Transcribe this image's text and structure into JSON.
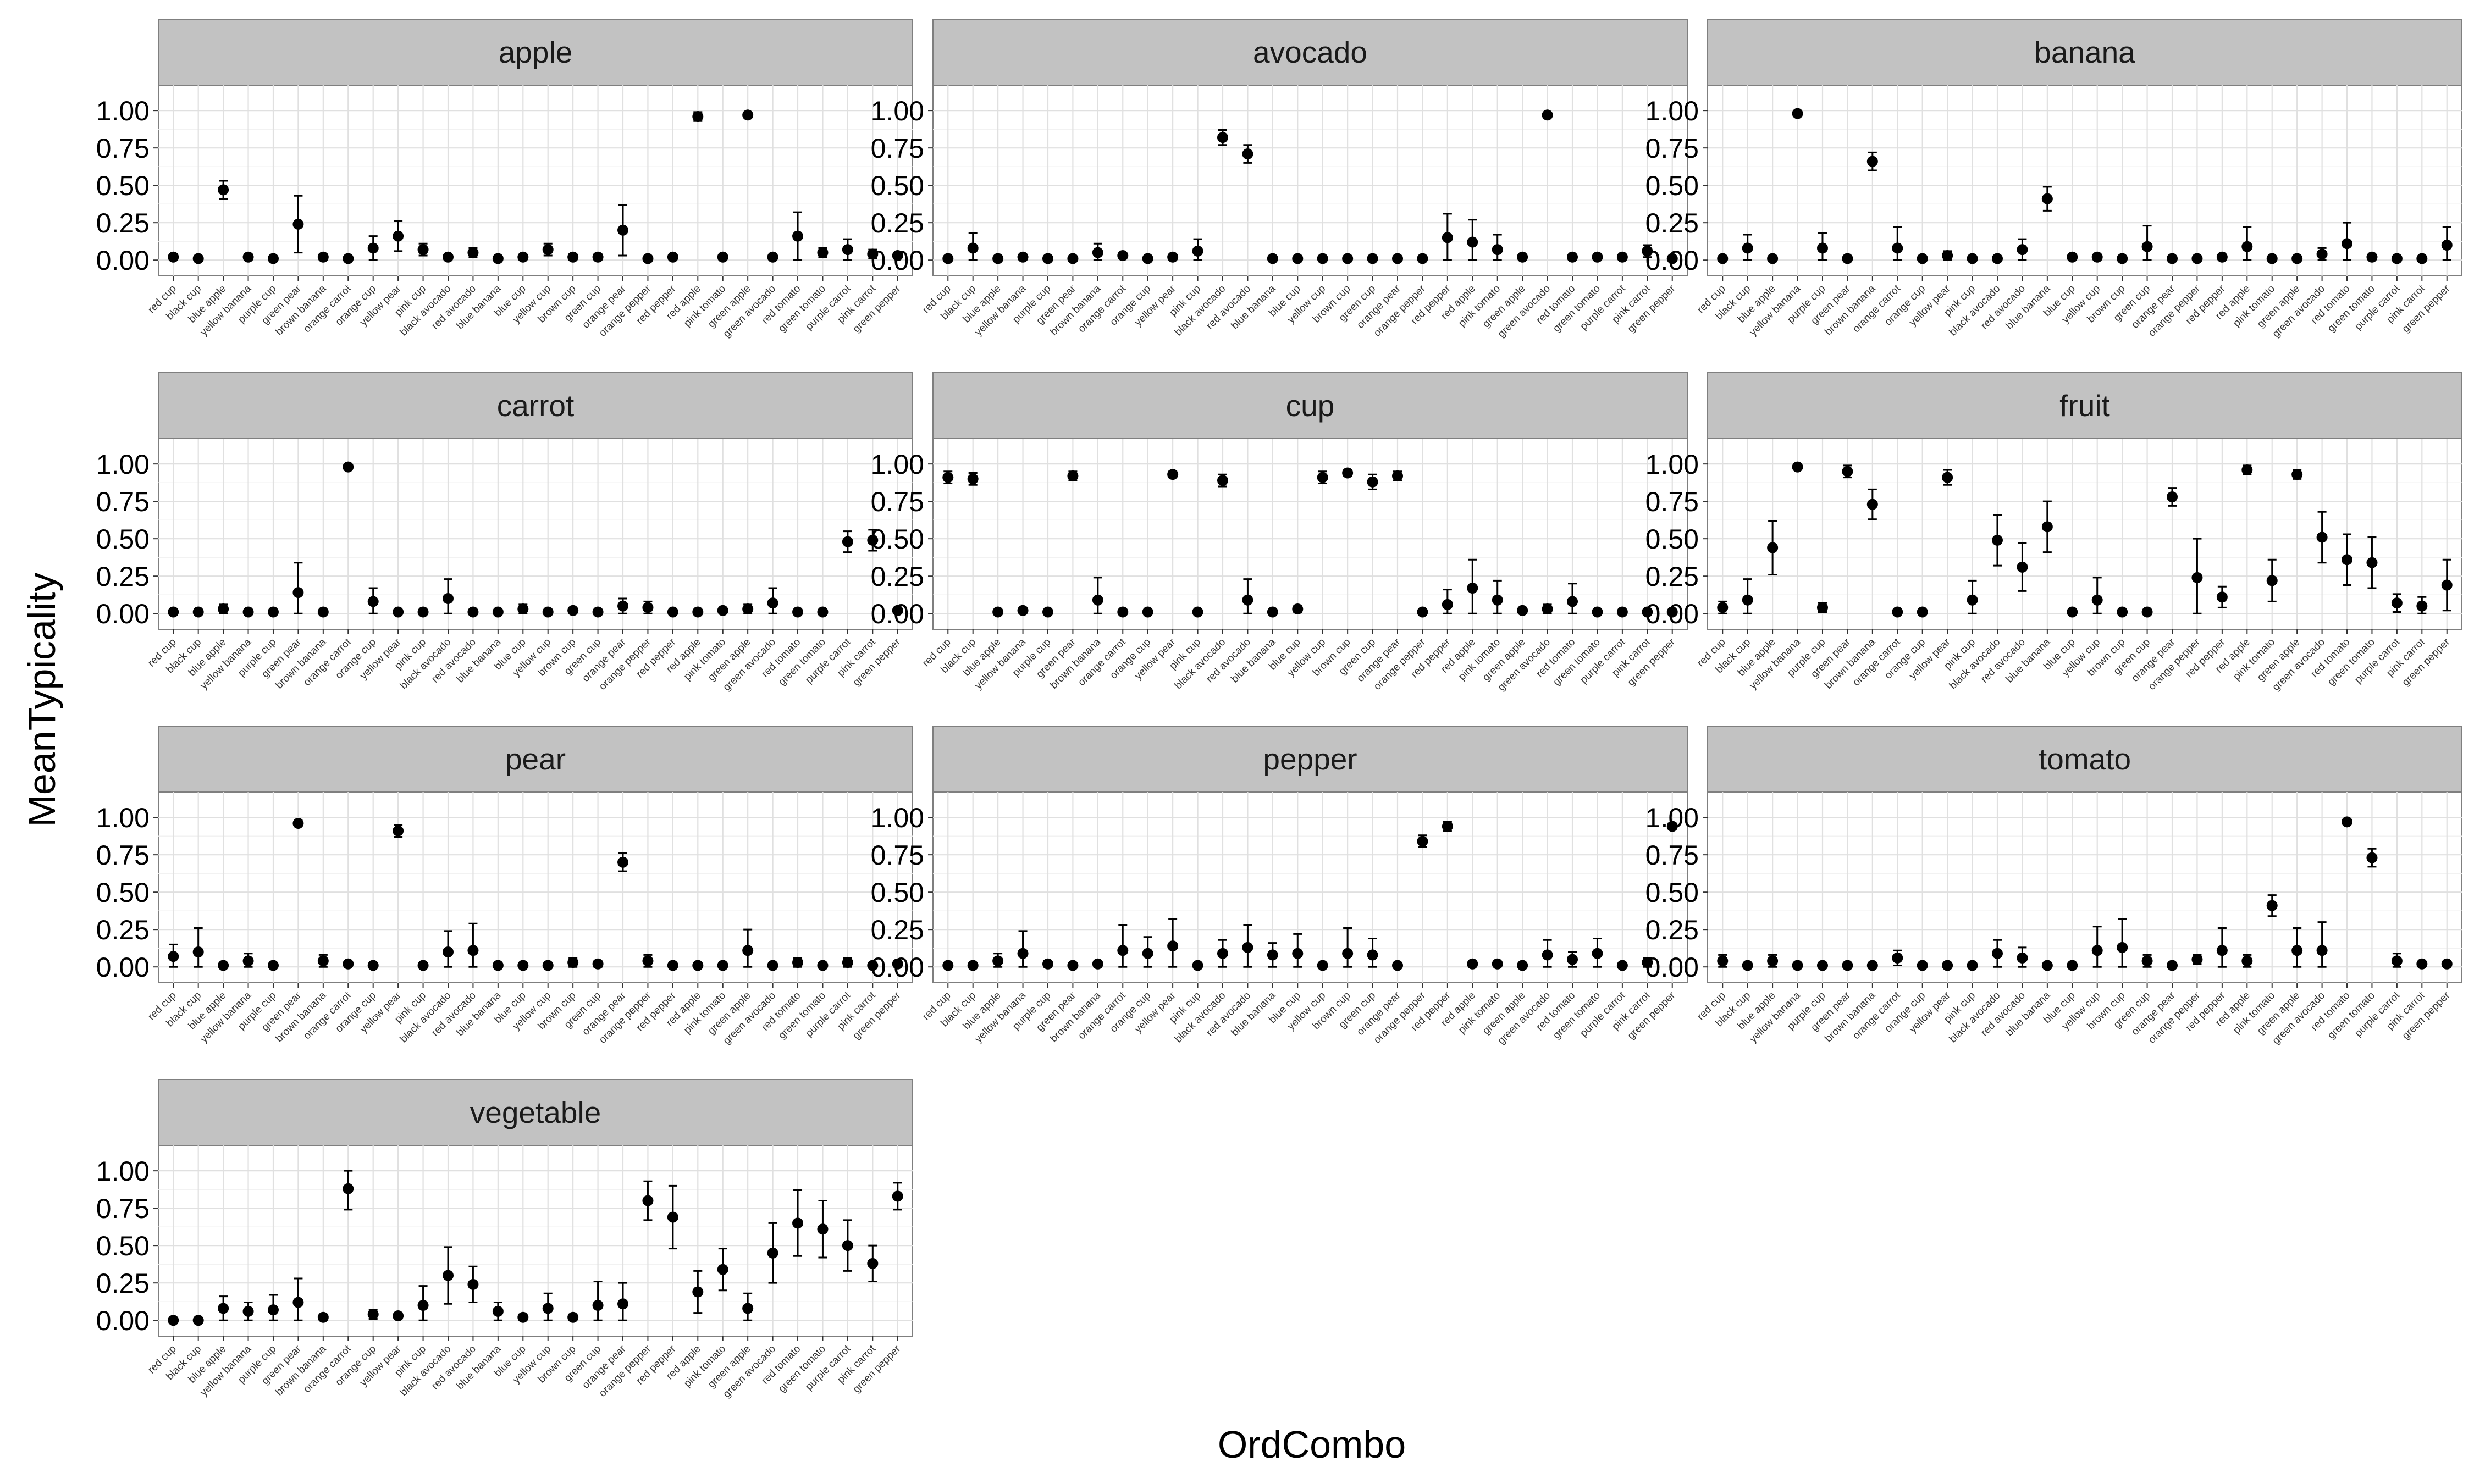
{
  "chart_data": {
    "type": "scatter",
    "xlabel": "OrdCombo",
    "ylabel": "MeanTypicality",
    "ylim": [
      0,
      1
    ],
    "yticks": [
      "0.00",
      "0.25",
      "0.50",
      "0.75",
      "1.00"
    ],
    "grid": true,
    "categories": [
      "red cup",
      "black cup",
      "blue apple",
      "yellow banana",
      "purple cup",
      "green pear",
      "brown banana",
      "orange carrot",
      "orange cup",
      "yellow pear",
      "pink cup",
      "black avocado",
      "red avocado",
      "blue banana",
      "blue cup",
      "yellow cup",
      "brown cup",
      "green cup",
      "orange pear",
      "orange pepper",
      "red pepper",
      "red apple",
      "pink tomato",
      "green apple",
      "green avocado",
      "red tomato",
      "green tomato",
      "purple carrot",
      "pink carrot",
      "green pepper"
    ],
    "panels": [
      {
        "name": "apple",
        "values": [
          0.02,
          0.01,
          0.47,
          0.02,
          0.01,
          0.24,
          0.02,
          0.01,
          0.08,
          0.16,
          0.07,
          0.02,
          0.05,
          0.01,
          0.02,
          0.07,
          0.02,
          0.02,
          0.2,
          0.01,
          0.02,
          0.96,
          0.02,
          0.97,
          0.02,
          0.16,
          0.05,
          0.07,
          0.04,
          0.03
        ],
        "err": [
          0.02,
          0.01,
          0.06,
          0.02,
          0.01,
          0.19,
          0.02,
          0.01,
          0.08,
          0.1,
          0.04,
          0.02,
          0.03,
          0.01,
          0.01,
          0.04,
          0.02,
          0.02,
          0.17,
          0.01,
          0.01,
          0.03,
          0.01,
          0.01,
          0.01,
          0.16,
          0.03,
          0.07,
          0.03,
          0.01
        ]
      },
      {
        "name": "avocado",
        "values": [
          0.01,
          0.08,
          0.01,
          0.02,
          0.01,
          0.01,
          0.05,
          0.03,
          0.01,
          0.02,
          0.06,
          0.82,
          0.71,
          0.01,
          0.01,
          0.01,
          0.01,
          0.01,
          0.01,
          0.01,
          0.15,
          0.12,
          0.07,
          0.02,
          0.97,
          0.02,
          0.02,
          0.02,
          0.06,
          0.01
        ],
        "err": [
          0.01,
          0.1,
          0.01,
          0.01,
          0.01,
          0.01,
          0.06,
          0.02,
          0.01,
          0.01,
          0.08,
          0.05,
          0.06,
          0.01,
          0.01,
          0.01,
          0.01,
          0.01,
          0.01,
          0.01,
          0.16,
          0.15,
          0.1,
          0.01,
          0.01,
          0.01,
          0.01,
          0.01,
          0.04,
          0.01
        ]
      },
      {
        "name": "banana",
        "values": [
          0.01,
          0.08,
          0.01,
          0.98,
          0.08,
          0.01,
          0.66,
          0.08,
          0.01,
          0.03,
          0.01,
          0.01,
          0.07,
          0.41,
          0.02,
          0.02,
          0.01,
          0.09,
          0.01,
          0.01,
          0.02,
          0.09,
          0.01,
          0.01,
          0.04,
          0.11,
          0.02,
          0.01,
          0.01,
          0.1
        ],
        "err": [
          0.01,
          0.09,
          0.01,
          0.01,
          0.1,
          0.01,
          0.06,
          0.14,
          0.01,
          0.03,
          0.01,
          0.01,
          0.07,
          0.08,
          0.01,
          0.01,
          0.01,
          0.14,
          0.01,
          0.01,
          0.01,
          0.13,
          0.01,
          0.01,
          0.04,
          0.14,
          0.01,
          0.01,
          0.01,
          0.12
        ]
      },
      {
        "name": "carrot",
        "values": [
          0.01,
          0.01,
          0.03,
          0.01,
          0.01,
          0.14,
          0.01,
          0.98,
          0.08,
          0.01,
          0.01,
          0.1,
          0.01,
          0.01,
          0.03,
          0.01,
          0.02,
          0.01,
          0.05,
          0.04,
          0.01,
          0.01,
          0.02,
          0.03,
          0.07,
          0.01,
          0.01,
          0.48,
          0.49,
          0.02
        ],
        "err": [
          0.01,
          0.01,
          0.03,
          0.01,
          0.01,
          0.2,
          0.01,
          0.01,
          0.09,
          0.01,
          0.01,
          0.13,
          0.01,
          0.01,
          0.03,
          0.01,
          0.01,
          0.01,
          0.05,
          0.04,
          0.01,
          0.01,
          0.01,
          0.03,
          0.1,
          0.01,
          0.01,
          0.07,
          0.07,
          0.01
        ]
      },
      {
        "name": "cup",
        "values": [
          0.91,
          0.9,
          0.01,
          0.02,
          0.01,
          0.92,
          0.09,
          0.01,
          0.01,
          0.93,
          0.01,
          0.89,
          0.09,
          0.01,
          0.03,
          0.91,
          0.94,
          0.88,
          0.92,
          0.01,
          0.06,
          0.17,
          0.09,
          0.02,
          0.03,
          0.08,
          0.01,
          0.01,
          0.01,
          0.01
        ],
        "err": [
          0.04,
          0.04,
          0.01,
          0.01,
          0.01,
          0.03,
          0.15,
          0.01,
          0.01,
          0.02,
          0.01,
          0.04,
          0.14,
          0.01,
          0.02,
          0.04,
          0.02,
          0.05,
          0.03,
          0.01,
          0.1,
          0.19,
          0.13,
          0.01,
          0.03,
          0.12,
          0.01,
          0.01,
          0.01,
          0.01
        ],
        "extra_end": 0.1
      },
      {
        "name": "fruit",
        "values": [
          0.04,
          0.09,
          0.44,
          0.98,
          0.04,
          0.95,
          0.73,
          0.01,
          0.01,
          0.91,
          0.09,
          0.49,
          0.31,
          0.58,
          0.01,
          0.09,
          0.01,
          0.01,
          0.78,
          0.24,
          0.11,
          0.96,
          0.22,
          0.93,
          0.51,
          0.36,
          0.34,
          0.07,
          0.05,
          0.19
        ],
        "err": [
          0.04,
          0.14,
          0.18,
          0.01,
          0.03,
          0.04,
          0.1,
          0.01,
          0.01,
          0.05,
          0.13,
          0.17,
          0.16,
          0.17,
          0.01,
          0.15,
          0.01,
          0.01,
          0.06,
          0.26,
          0.07,
          0.03,
          0.14,
          0.03,
          0.17,
          0.17,
          0.17,
          0.06,
          0.06,
          0.17
        ]
      },
      {
        "name": "pear",
        "values": [
          0.07,
          0.1,
          0.01,
          0.04,
          0.01,
          0.96,
          0.04,
          0.02,
          0.01,
          0.91,
          0.01,
          0.1,
          0.11,
          0.01,
          0.01,
          0.01,
          0.03,
          0.02,
          0.7,
          0.04,
          0.01,
          0.01,
          0.01,
          0.11,
          0.01,
          0.03,
          0.01,
          0.03,
          0.01,
          0.02
        ],
        "err": [
          0.08,
          0.16,
          0.01,
          0.05,
          0.01,
          0.02,
          0.04,
          0.01,
          0.01,
          0.04,
          0.01,
          0.14,
          0.18,
          0.01,
          0.01,
          0.01,
          0.03,
          0.02,
          0.06,
          0.04,
          0.01,
          0.01,
          0.01,
          0.14,
          0.01,
          0.03,
          0.01,
          0.03,
          0.01,
          0.01
        ]
      },
      {
        "name": "pepper",
        "values": [
          0.01,
          0.01,
          0.04,
          0.09,
          0.02,
          0.01,
          0.02,
          0.11,
          0.09,
          0.14,
          0.01,
          0.09,
          0.13,
          0.08,
          0.09,
          0.01,
          0.09,
          0.08,
          0.01,
          0.84,
          0.94,
          0.02,
          0.02,
          0.01,
          0.08,
          0.05,
          0.09,
          0.01,
          0.03,
          0.94
        ],
        "err": [
          0.01,
          0.01,
          0.05,
          0.15,
          0.02,
          0.01,
          0.02,
          0.17,
          0.11,
          0.18,
          0.01,
          0.09,
          0.15,
          0.08,
          0.13,
          0.01,
          0.17,
          0.11,
          0.01,
          0.04,
          0.03,
          0.01,
          0.01,
          0.01,
          0.1,
          0.05,
          0.1,
          0.01,
          0.03,
          0.02
        ]
      },
      {
        "name": "tomato",
        "values": [
          0.04,
          0.01,
          0.04,
          0.01,
          0.01,
          0.01,
          0.01,
          0.06,
          0.01,
          0.01,
          0.01,
          0.09,
          0.06,
          0.01,
          0.01,
          0.11,
          0.13,
          0.04,
          0.01,
          0.05,
          0.11,
          0.04,
          0.41,
          0.11,
          0.11,
          0.97,
          0.73,
          0.04,
          0.02,
          0.02
        ],
        "err": [
          0.04,
          0.01,
          0.04,
          0.01,
          0.01,
          0.01,
          0.01,
          0.05,
          0.01,
          0.01,
          0.01,
          0.09,
          0.07,
          0.01,
          0.01,
          0.16,
          0.19,
          0.04,
          0.01,
          0.03,
          0.15,
          0.04,
          0.07,
          0.15,
          0.19,
          0.01,
          0.06,
          0.05,
          0.01,
          0.01
        ]
      }
    ],
    "vegetable": {
      "name": "vegetable",
      "categories": [
        "red cup",
        "black cup",
        "blue apple",
        "yellow banana",
        "purple cup",
        "green pear",
        "brown banana",
        "orange carrot",
        "orange cup",
        "yellow pear",
        "pink cup",
        "black avocado",
        "red avocado",
        "blue banana",
        "blue cup",
        "yellow cup",
        "brown cup",
        "green cup",
        "orange pear",
        "orange pepper",
        "red pepper",
        "red apple",
        "pink tomato",
        "green apple",
        "green avocado",
        "red tomato",
        "green tomato",
        "purple carrot",
        "pink carrot",
        "green pepper"
      ],
      "values": [
        0.0,
        0.0,
        0.08,
        0.06,
        0.07,
        0.12,
        0.02,
        0.88,
        0.04,
        0.03,
        0.1,
        0.3,
        0.24,
        0.06,
        0.02,
        0.08,
        0.02,
        0.1,
        0.11,
        0.8,
        0.69,
        0.19,
        0.34,
        0.08,
        0.45,
        0.65,
        0.61,
        0.5,
        0.38,
        0.83
      ],
      "err": [
        0.01,
        0.01,
        0.08,
        0.06,
        0.1,
        0.16,
        0.02,
        0.14,
        0.03,
        0.02,
        0.13,
        0.19,
        0.12,
        0.06,
        0.02,
        0.1,
        0.02,
        0.16,
        0.14,
        0.13,
        0.21,
        0.14,
        0.14,
        0.1,
        0.2,
        0.22,
        0.19,
        0.17,
        0.12,
        0.09
      ]
    }
  }
}
